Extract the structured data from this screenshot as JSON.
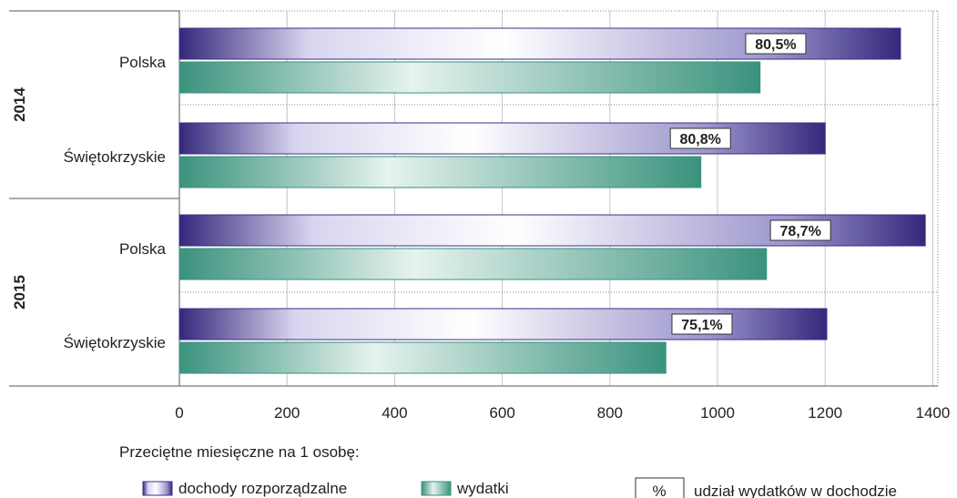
{
  "chart_data": {
    "type": "bar",
    "orientation": "horizontal",
    "groups": [
      {
        "year": "2014",
        "categories": [
          {
            "name": "Polska",
            "dochody": 1340,
            "wydatki": 1079,
            "label": "80,5%"
          },
          {
            "name": "Świętokrzyskie",
            "dochody": 1200,
            "wydatki": 969,
            "label": "80,8%"
          }
        ]
      },
      {
        "year": "2015",
        "categories": [
          {
            "name": "Polska",
            "dochody": 1386,
            "wydatki": 1091,
            "label": "78,7%"
          },
          {
            "name": "Świętokrzyskie",
            "dochody": 1203,
            "wydatki": 904,
            "label": "75,1%"
          }
        ]
      }
    ],
    "series": [
      {
        "key": "dochody",
        "name": "dochody rozporządzalne",
        "color": "#3b2f86"
      },
      {
        "key": "wydatki",
        "name": "wydatki",
        "color": "#3f9a86"
      }
    ],
    "xlim": [
      0,
      1400
    ],
    "xticks": [
      "0",
      "200",
      "400",
      "600",
      "800",
      "1000",
      "1200",
      "1400"
    ],
    "grid": true,
    "legend": {
      "heading": "Przeciętne miesięczne na 1 osobę:",
      "share_symbol": "%",
      "share_label": "udział wydatków w dochodzie"
    }
  }
}
